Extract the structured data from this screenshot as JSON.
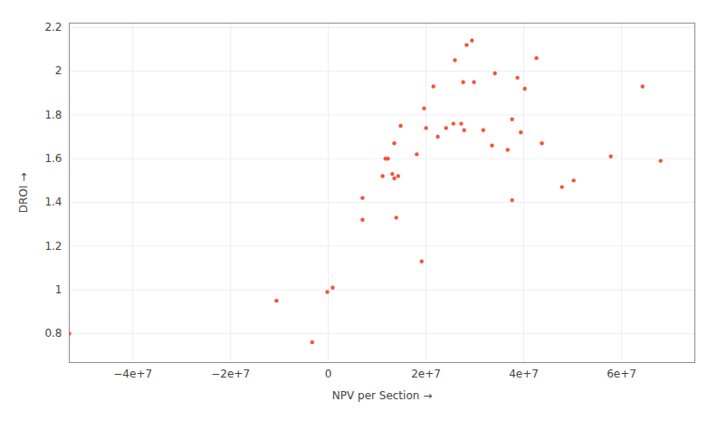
{
  "chart_data": {
    "type": "scatter",
    "x_label": "NPV per Section",
    "y_label": "DROI",
    "color": "#EF553B",
    "grid": true,
    "x": [
      -53000000,
      -10600000,
      -3300000,
      -200000,
      900000,
      7000000,
      7000000,
      11100000,
      11700000,
      12200000,
      13100000,
      13500000,
      13500000,
      14300000,
      13900000,
      14800000,
      18100000,
      19100000,
      19600000,
      20000000,
      21500000,
      22400000,
      24100000,
      25600000,
      25900000,
      27200000,
      27600000,
      27800000,
      28300000,
      29400000,
      29800000,
      31700000,
      33500000,
      34100000,
      36700000,
      37600000,
      37600000,
      38700000,
      39400000,
      40200000,
      42600000,
      43700000,
      47800000,
      50200000,
      57800000,
      64300000,
      68000000
    ],
    "values": [
      0.8,
      0.95,
      0.76,
      0.99,
      1.01,
      1.42,
      1.32,
      1.52,
      1.6,
      1.6,
      1.53,
      1.67,
      1.51,
      1.52,
      1.33,
      1.75,
      1.62,
      1.13,
      1.83,
      1.74,
      1.93,
      1.7,
      1.74,
      1.76,
      2.05,
      1.76,
      1.95,
      1.73,
      2.12,
      2.14,
      1.95,
      1.73,
      1.66,
      1.99,
      1.64,
      1.78,
      1.41,
      1.97,
      1.72,
      1.92,
      2.06,
      1.67,
      1.47,
      1.5,
      1.61,
      1.93,
      1.59
    ],
    "xlim": [
      -53000000,
      75000000
    ],
    "ylim": [
      0.667,
      2.22
    ],
    "xticks": [
      {
        "value": -40000000,
        "label": "−4e+7"
      },
      {
        "value": -20000000,
        "label": "−2e+7"
      },
      {
        "value": 0,
        "label": "0"
      },
      {
        "value": 20000000,
        "label": "2e+7"
      },
      {
        "value": 40000000,
        "label": "4e+7"
      },
      {
        "value": 60000000,
        "label": "6e+7"
      }
    ],
    "yticks": [
      0.8,
      1,
      1.2,
      1.4,
      1.6,
      1.8,
      2,
      2.2
    ]
  }
}
